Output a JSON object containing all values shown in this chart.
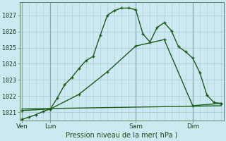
{
  "bg_color": "#cce8f0",
  "grid_color": "#aaccd8",
  "line_color": "#1a5c1a",
  "ylim": [
    1020.5,
    1027.8
  ],
  "yticks": [
    1021,
    1022,
    1023,
    1024,
    1025,
    1026,
    1027
  ],
  "day_labels": [
    "Ven",
    "Lun",
    "Sam",
    "Dim"
  ],
  "day_positions": [
    0,
    24,
    96,
    144
  ],
  "xlabel": "Pression niveau de la mer( hPa )",
  "xlim": [
    -2,
    170
  ],
  "series1_x": [
    0,
    6,
    12,
    18,
    24,
    30,
    36,
    42,
    48,
    54,
    60,
    66,
    72,
    78,
    84,
    90,
    96,
    102,
    108,
    114,
    120,
    126,
    132,
    138,
    144,
    150,
    156,
    162,
    168
  ],
  "series1_y": [
    1020.55,
    1020.7,
    1020.85,
    1021.05,
    1021.2,
    1021.9,
    1022.7,
    1023.15,
    1023.7,
    1024.2,
    1024.45,
    1025.75,
    1027.0,
    1027.3,
    1027.45,
    1027.45,
    1027.35,
    1025.85,
    1025.35,
    1026.25,
    1026.55,
    1026.05,
    1025.05,
    1024.75,
    1024.35,
    1023.45,
    1022.05,
    1021.6,
    1021.55
  ],
  "series2_x": [
    0,
    24,
    48,
    72,
    96,
    120,
    144,
    168
  ],
  "series2_y": [
    1021.1,
    1021.2,
    1022.1,
    1023.5,
    1025.1,
    1025.5,
    1021.4,
    1021.55
  ],
  "series3_x": [
    0,
    168
  ],
  "series3_y": [
    1021.2,
    1021.4
  ]
}
